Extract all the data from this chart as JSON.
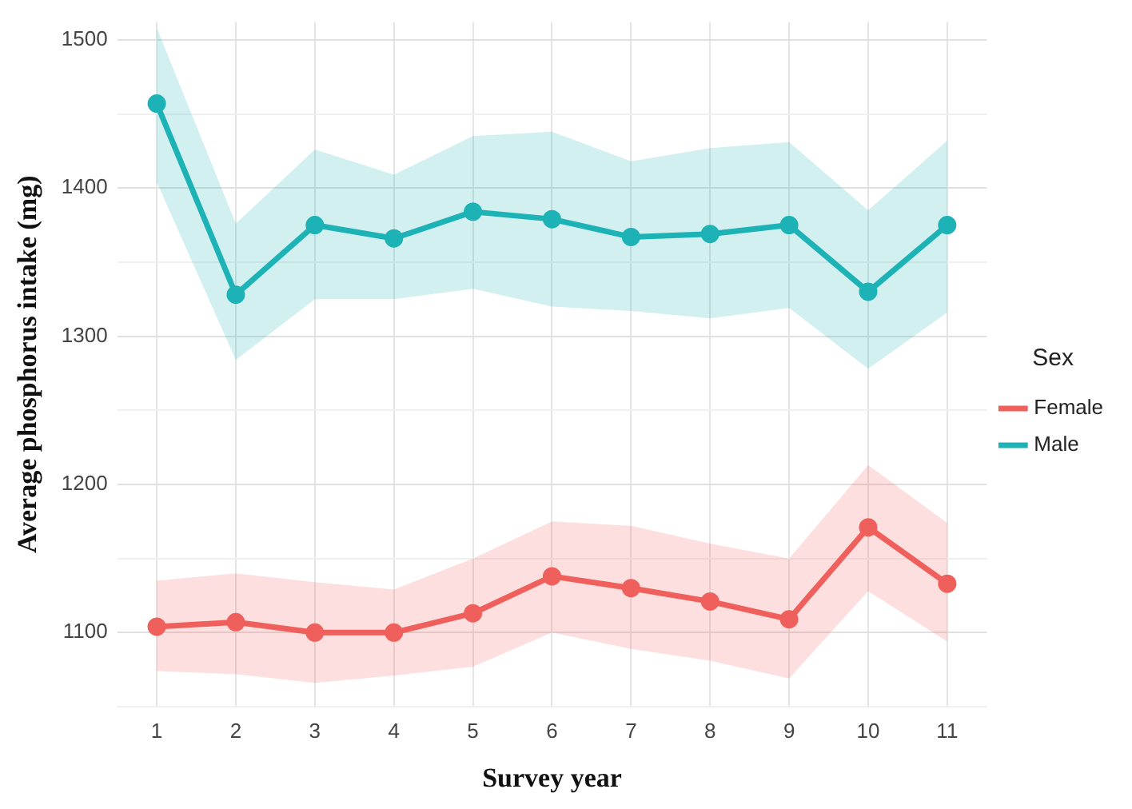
{
  "chart_data": {
    "type": "line",
    "xlabel": "Survey year",
    "ylabel": "Average phosphorus intake (mg)",
    "legend_title": "Sex",
    "legend": "right",
    "grid": true,
    "marker": "circle",
    "line_style": "solid",
    "categories": [
      "1",
      "2",
      "3",
      "4",
      "5",
      "6",
      "7",
      "8",
      "9",
      "10",
      "11"
    ],
    "ylim": [
      1050,
      1512
    ],
    "yticks": [
      {
        "value": 1050,
        "label": null
      },
      1100,
      {
        "value": 1150,
        "label": null
      },
      1200,
      {
        "value": 1250,
        "label": null
      },
      1300,
      {
        "value": 1350,
        "label": null
      },
      1400,
      {
        "value": 1450,
        "label": null
      },
      1500
    ],
    "series": [
      {
        "name": "Female",
        "color": "#ef5f5b",
        "values": [
          1104,
          1107,
          1100,
          1100,
          1113,
          1138,
          1130,
          1121,
          1109,
          1171,
          1133
        ],
        "lower": [
          1074,
          1072,
          1066,
          1071,
          1077,
          1100,
          1089,
          1081,
          1069,
          1128,
          1094
        ],
        "upper": [
          1135,
          1140,
          1134,
          1129,
          1150,
          1175,
          1172,
          1160,
          1150,
          1213,
          1174
        ]
      },
      {
        "name": "Male",
        "color": "#1cb2b6",
        "values": [
          1457,
          1328,
          1375,
          1366,
          1384,
          1379,
          1367,
          1369,
          1375,
          1330,
          1375
        ],
        "lower": [
          1404,
          1284,
          1325,
          1325,
          1332,
          1320,
          1317,
          1312,
          1319,
          1278,
          1316
        ],
        "upper": [
          1508,
          1376,
          1426,
          1409,
          1435,
          1438,
          1418,
          1427,
          1431,
          1385,
          1432
        ]
      }
    ]
  }
}
